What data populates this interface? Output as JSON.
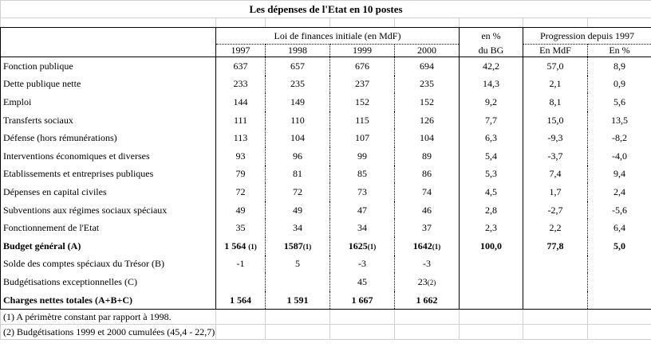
{
  "title": "Les dépenses de l'Etat en 10 postes",
  "headers": {
    "group1": "Loi de finances initiale (en MdF)",
    "pct_top": "en %",
    "pct_bottom": "du BG",
    "group2": "Progression depuis 1997",
    "years": [
      "1997",
      "1998",
      "1999",
      "2000"
    ],
    "prog": [
      "En MdF",
      "En %"
    ]
  },
  "rows": [
    {
      "label": "Fonction publique",
      "values": [
        "637",
        "657",
        "676",
        "694",
        "42,2",
        "57,0",
        "8,9"
      ]
    },
    {
      "label": "Dette publique nette",
      "values": [
        "233",
        "235",
        "237",
        "235",
        "14,3",
        "2,1",
        "0,9"
      ]
    },
    {
      "label": "Emploi",
      "values": [
        "144",
        "149",
        "152",
        "152",
        "9,2",
        "8,1",
        "5,6"
      ]
    },
    {
      "label": "Transferts sociaux",
      "values": [
        "111",
        "110",
        "115",
        "126",
        "7,7",
        "15,0",
        "13,5"
      ]
    },
    {
      "label": "Défense (hors rémunérations)",
      "values": [
        "113",
        "104",
        "107",
        "104",
        "6,3",
        "-9,3",
        "-8,2"
      ]
    },
    {
      "label": "Interventions économiques et diverses",
      "values": [
        "93",
        "96",
        "99",
        "89",
        "5,4",
        "-3,7",
        "-4,0"
      ]
    },
    {
      "label": "Etablissements et entreprises publiques",
      "values": [
        "79",
        "81",
        "85",
        "86",
        "5,3",
        "7,4",
        "9,4"
      ]
    },
    {
      "label": "Dépenses en capital civiles",
      "values": [
        "72",
        "72",
        "73",
        "74",
        "4,5",
        "1,7",
        "2,4"
      ]
    },
    {
      "label": "Subventions aux régimes sociaux spéciaux",
      "values": [
        "49",
        "49",
        "47",
        "46",
        "2,8",
        "-2,7",
        "-5,6"
      ]
    },
    {
      "label": "Fonctionnement de l'Etat",
      "values": [
        "35",
        "34",
        "34",
        "37",
        "2,3",
        "2,2",
        "6,4"
      ]
    }
  ],
  "budget": {
    "label": "Budget général (A)",
    "values": [
      "1 564 ",
      "1587",
      "1625",
      "1642",
      "100,0",
      "77,8",
      "5,0"
    ],
    "note": "(1)"
  },
  "solde": {
    "label": "Solde des comptes spéciaux du Trésor (B)",
    "values": [
      "-1",
      "5",
      "-3",
      "-3",
      "",
      "",
      ""
    ]
  },
  "budgetisations": {
    "label": "Budgétisations exceptionnelles (C)",
    "values": [
      "",
      "",
      "45",
      "23",
      "",
      "",
      ""
    ],
    "note": "(2)"
  },
  "charges": {
    "label": "Charges nettes totales (A+B+C)",
    "values": [
      "1 564",
      "1 591",
      "1 667",
      "1 662",
      "",
      "",
      ""
    ]
  },
  "footnotes": [
    "(1) A périmètre constant par rapport à 1998.",
    "(2) Budgétisations 1999 et 2000 cumulées (45,4 - 22,7)"
  ]
}
